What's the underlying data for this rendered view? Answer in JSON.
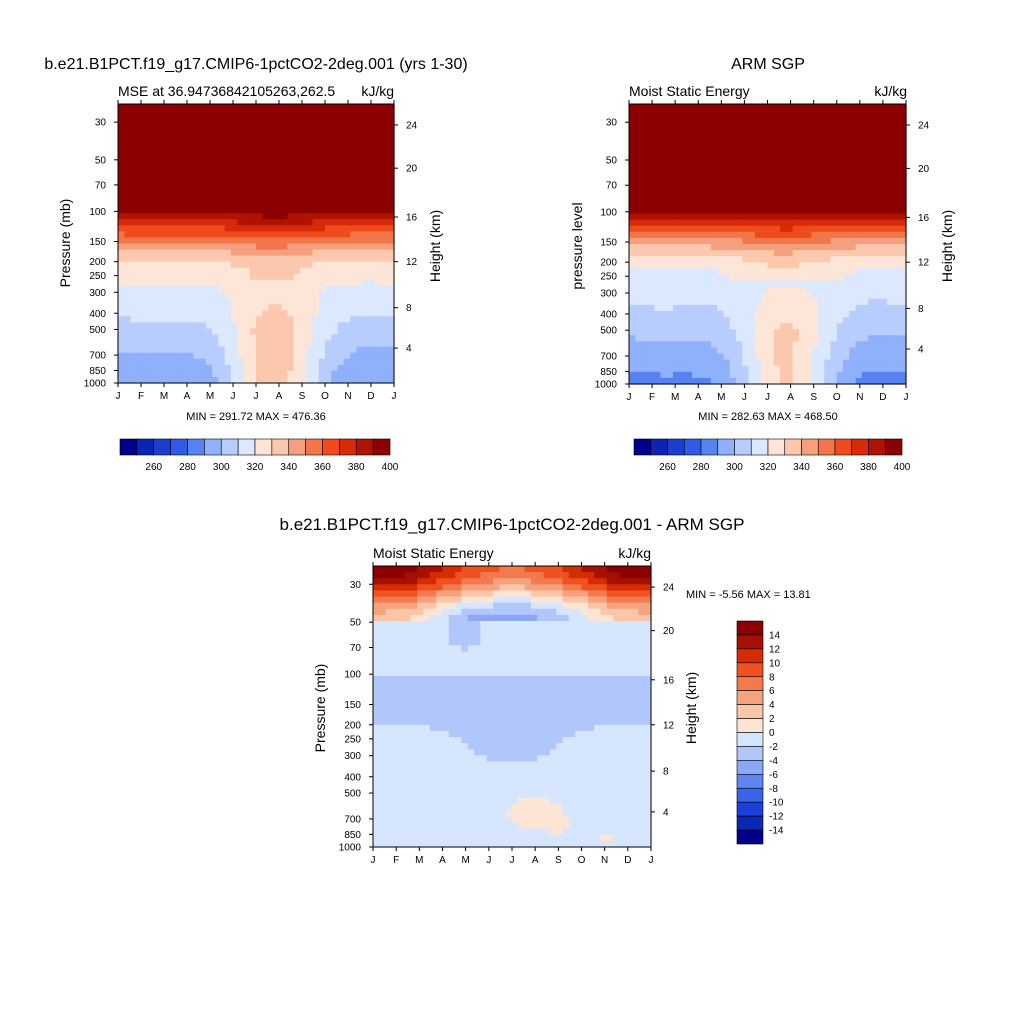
{
  "colors": {
    "mse_palette": [
      "#00008c",
      "#0d23b3",
      "#1a3fd0",
      "#2f5be6",
      "#5783f2",
      "#8fb0fb",
      "#b8cdfd",
      "#dce8fe",
      "#fde5d8",
      "#fbc8ad",
      "#f59f7e",
      "#f2764a",
      "#ef4b1d",
      "#d82a08",
      "#b01200",
      "#8c0000"
    ],
    "diff_palette": [
      "#00008c",
      "#0a28b5",
      "#1c40d9",
      "#3a63ea",
      "#5e86f2",
      "#8aa8f6",
      "#b1c7fb",
      "#d6e6fe",
      "#fde5d6",
      "#fbc6a8",
      "#f5a27e",
      "#f37a4e",
      "#ef521f",
      "#d52c06",
      "#a70f00",
      "#8c0000"
    ]
  },
  "chart_data": [
    {
      "type": "heatmap",
      "title": "b.e21.B1PCT.f19_g17.CMIP6-1pctCO2-2deg.001 (yrs 1-30)",
      "left_string": "MSE at 36.94736842105263,262.5",
      "right_string": "kJ/kg",
      "ylabel": "Pressure (mb)",
      "ylabel_right": "Height (km)",
      "x_ticks": [
        "J",
        "F",
        "M",
        "A",
        "M",
        "J",
        "J",
        "A",
        "S",
        "O",
        "N",
        "D",
        "J"
      ],
      "y_ticks": [
        "30",
        "50",
        "70",
        "100",
        "150",
        "200",
        "250",
        "300",
        "400",
        "500",
        "700",
        "850",
        "1000"
      ],
      "y_ticks_right": [
        "24",
        "20",
        "16",
        "12",
        "8",
        "4"
      ],
      "footer": "MIN = 291.72 MAX = 476.36",
      "colorbar_labels": [
        "260",
        "280",
        "300",
        "320",
        "340",
        "360",
        "380",
        "400"
      ],
      "min": 291.72,
      "max": 476.36
    },
    {
      "type": "heatmap",
      "title": "ARM SGP",
      "left_string": "Moist Static Energy",
      "right_string": "kJ/kg",
      "ylabel": "pressure level",
      "ylabel_right": "Height (km)",
      "x_ticks": [
        "J",
        "F",
        "M",
        "A",
        "M",
        "J",
        "J",
        "A",
        "S",
        "O",
        "N",
        "D",
        "J"
      ],
      "y_ticks": [
        "30",
        "50",
        "70",
        "100",
        "150",
        "200",
        "250",
        "300",
        "400",
        "500",
        "700",
        "850",
        "1000"
      ],
      "y_ticks_right": [
        "24",
        "20",
        "16",
        "12",
        "8",
        "4"
      ],
      "footer": "MIN = 282.63 MAX = 468.50",
      "colorbar_labels": [
        "260",
        "280",
        "300",
        "320",
        "340",
        "360",
        "380",
        "400"
      ],
      "min": 282.63,
      "max": 468.5
    },
    {
      "type": "heatmap",
      "title": "b.e21.B1PCT.f19_g17.CMIP6-1pctCO2-2deg.001 - ARM SGP",
      "left_string": "Moist Static Energy",
      "right_string": "kJ/kg",
      "ylabel": "Pressure (mb)",
      "ylabel_right": "Height (km)",
      "x_ticks": [
        "J",
        "F",
        "M",
        "A",
        "M",
        "J",
        "J",
        "A",
        "S",
        "O",
        "N",
        "D",
        "J"
      ],
      "y_ticks": [
        "30",
        "50",
        "70",
        "100",
        "150",
        "200",
        "250",
        "300",
        "400",
        "500",
        "700",
        "850",
        "1000"
      ],
      "y_ticks_right": [
        "24",
        "20",
        "16",
        "12",
        "8",
        "4"
      ],
      "minmax": "MIN =  -5.56 MAX =  13.81",
      "colorbar_labels": [
        "14",
        "12",
        "10",
        "8",
        "6",
        "4",
        "2",
        "0",
        "-2",
        "-4",
        "-6",
        "-8",
        "-10",
        "-12",
        "-14"
      ],
      "min": -5.56,
      "max": 13.81
    }
  ]
}
